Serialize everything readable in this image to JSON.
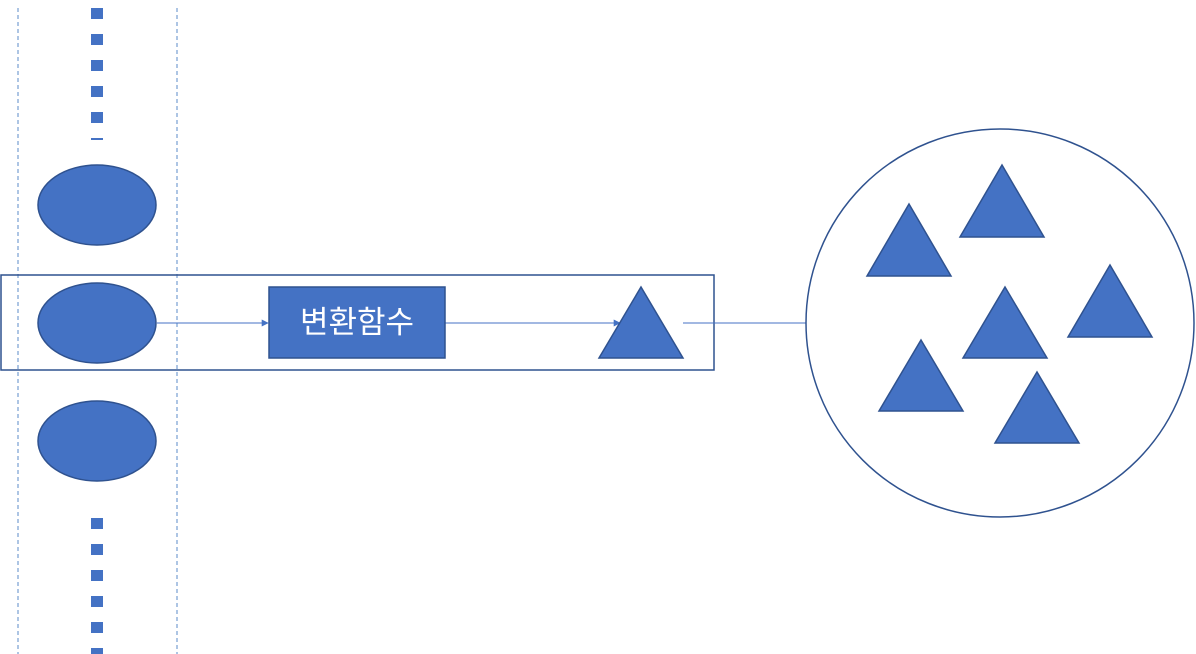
{
  "diagram": {
    "function_box_label": "변환함수",
    "colors": {
      "shape_fill": "#4472C4",
      "shape_stroke": "#2F528F",
      "line": "#4472C4",
      "guide_line": "#5B8BC9",
      "frame_stroke": "#2F528F",
      "label_text": "#ffffff"
    },
    "nodes": {
      "input_ellipses": [
        "input-ellipse-top",
        "input-ellipse-middle",
        "input-ellipse-bottom"
      ],
      "output_set_triangles": 6
    }
  }
}
